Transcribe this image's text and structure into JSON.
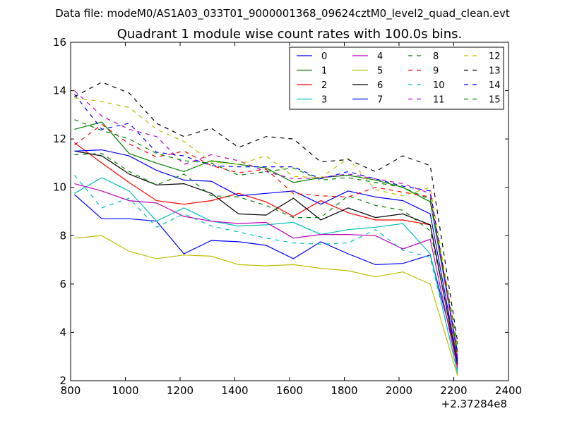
{
  "chart_data": {
    "type": "line",
    "suptitle": "Data file: modeM0/AS1A03_033T01_9000001368_09624cztM0_level2_quad_clean.evt",
    "title": "Quadrant 1 module wise count rates with 100.0s bins.",
    "xlabel": "",
    "ylabel": "",
    "x_offset_label": "+2.37284e8",
    "xlim": [
      800,
      2400
    ],
    "ylim": [
      2,
      16
    ],
    "xticks": [
      "800",
      "1000",
      "1200",
      "1400",
      "1600",
      "1800",
      "2000",
      "2200",
      "2400"
    ],
    "yticks": [
      "2",
      "4",
      "6",
      "8",
      "10",
      "12",
      "14",
      "16"
    ],
    "legend_position": "top-right",
    "x": [
      814,
      914,
      1014,
      1114,
      1214,
      1314,
      1414,
      1514,
      1614,
      1714,
      1814,
      1914,
      2014,
      2114,
      2214
    ],
    "series": [
      {
        "name": "0",
        "color": "#0000ff",
        "dash": "solid",
        "values": [
          9.7,
          8.7,
          8.7,
          8.6,
          7.25,
          7.8,
          7.75,
          7.6,
          7.05,
          7.75,
          7.25,
          6.8,
          6.85,
          7.2,
          2.9
        ]
      },
      {
        "name": "1",
        "color": "#008000",
        "dash": "solid",
        "values": [
          12.4,
          12.7,
          11.4,
          11.0,
          10.65,
          11.1,
          10.95,
          10.8,
          10.2,
          10.4,
          10.5,
          10.3,
          10.0,
          9.4,
          3.2
        ]
      },
      {
        "name": "2",
        "color": "#ff0000",
        "dash": "solid",
        "values": [
          11.85,
          11.0,
          10.2,
          9.45,
          9.3,
          9.45,
          9.75,
          9.4,
          8.8,
          9.45,
          8.95,
          8.65,
          8.65,
          8.45,
          2.6
        ]
      },
      {
        "name": "3",
        "color": "#00bfbf",
        "dash": "solid",
        "values": [
          9.75,
          10.4,
          9.85,
          8.6,
          9.15,
          8.6,
          8.4,
          8.45,
          8.55,
          8.05,
          8.25,
          8.35,
          8.5,
          7.25,
          2.3
        ]
      },
      {
        "name": "4",
        "color": "#bf00bf",
        "dash": "solid",
        "values": [
          10.15,
          9.85,
          9.45,
          9.35,
          8.8,
          8.6,
          8.5,
          8.55,
          7.9,
          8.05,
          8.05,
          8.0,
          7.45,
          7.85,
          2.5
        ]
      },
      {
        "name": "5",
        "color": "#bfbf00",
        "dash": "solid",
        "values": [
          7.9,
          8.0,
          7.35,
          7.05,
          7.2,
          7.15,
          6.8,
          6.75,
          6.8,
          6.65,
          6.55,
          6.3,
          6.5,
          6.0,
          2.2
        ]
      },
      {
        "name": "6",
        "color": "#000000",
        "dash": "solid",
        "values": [
          11.5,
          11.3,
          10.55,
          10.1,
          10.15,
          9.75,
          8.9,
          8.85,
          9.55,
          8.65,
          9.15,
          8.75,
          8.9,
          8.45,
          2.7
        ]
      },
      {
        "name": "7",
        "color": "#0000ff",
        "dash": "solid",
        "values": [
          11.5,
          11.55,
          11.3,
          10.7,
          10.3,
          10.25,
          9.65,
          9.75,
          9.85,
          9.3,
          9.85,
          9.6,
          9.45,
          8.9,
          2.8
        ]
      },
      {
        "name": "8",
        "color": "#008000",
        "dash": "dashed",
        "values": [
          11.35,
          11.4,
          10.65,
          10.1,
          10.55,
          9.65,
          9.6,
          9.25,
          8.75,
          8.75,
          9.65,
          9.25,
          9.05,
          8.2,
          2.9
        ]
      },
      {
        "name": "9",
        "color": "#ff0000",
        "dash": "dashed",
        "values": [
          11.75,
          12.6,
          11.8,
          11.25,
          11.5,
          10.9,
          10.6,
          10.75,
          9.75,
          9.65,
          9.6,
          10.0,
          9.8,
          9.6,
          3.0
        ]
      },
      {
        "name": "10",
        "color": "#00bfbf",
        "dash": "dashed",
        "values": [
          10.5,
          9.15,
          9.55,
          8.35,
          8.9,
          8.4,
          8.15,
          7.9,
          7.7,
          7.65,
          7.7,
          8.25,
          7.4,
          7.1,
          2.4
        ]
      },
      {
        "name": "11",
        "color": "#bf00bf",
        "dash": "dashed",
        "values": [
          14.0,
          12.95,
          12.4,
          12.1,
          10.95,
          11.35,
          11.1,
          10.65,
          10.35,
          10.4,
          10.55,
          10.35,
          10.15,
          9.75,
          3.0
        ]
      },
      {
        "name": "12",
        "color": "#bfbf00",
        "dash": "dashed",
        "values": [
          13.7,
          13.55,
          13.3,
          12.4,
          11.9,
          11.05,
          10.95,
          11.3,
          10.45,
          10.4,
          11.2,
          9.9,
          9.65,
          10.0,
          3.4
        ]
      },
      {
        "name": "13",
        "color": "#000000",
        "dash": "dashed",
        "values": [
          13.75,
          14.35,
          13.9,
          12.65,
          12.1,
          12.45,
          11.65,
          12.1,
          12.0,
          11.05,
          11.15,
          10.65,
          11.3,
          10.9,
          3.6
        ]
      },
      {
        "name": "14",
        "color": "#0000ff",
        "dash": "dashed",
        "values": [
          13.85,
          12.4,
          12.65,
          11.45,
          11.3,
          10.9,
          10.85,
          10.85,
          10.85,
          10.35,
          10.65,
          10.35,
          10.05,
          9.85,
          3.1
        ]
      },
      {
        "name": "15",
        "color": "#008000",
        "dash": "dashed",
        "values": [
          12.8,
          12.35,
          12.0,
          11.4,
          11.1,
          11.0,
          10.5,
          10.65,
          10.8,
          10.3,
          10.4,
          10.2,
          10.0,
          9.5,
          3.5
        ]
      }
    ]
  }
}
